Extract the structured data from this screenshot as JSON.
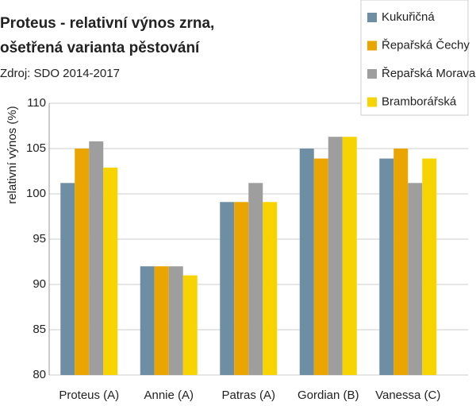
{
  "chart_data": {
    "type": "bar",
    "title": "Proteus - relativní výnos zrna,",
    "subtitle": "ošetřená varianta pěstování",
    "source": "Zdroj: SDO 2014-2017",
    "y_label": "relativní výnos (%)",
    "categories": [
      "Proteus (A)",
      "Annie (A)",
      "Patras (A)",
      "Gordian (B)",
      "Vanessa (C)"
    ],
    "series": [
      {
        "name": "Kukuřičná",
        "color": "#6e8ea3",
        "values": [
          101.2,
          92,
          99.1,
          105,
          103.9
        ]
      },
      {
        "name": "Řepařská Čechy",
        "color": "#eba500",
        "values": [
          105,
          92,
          99.1,
          103.9,
          105
        ]
      },
      {
        "name": "Řepařská Morava",
        "color": "#9e9e9e",
        "values": [
          105.8,
          92,
          101.2,
          106.3,
          101.2
        ]
      },
      {
        "name": "Bramborářská",
        "color": "#f7d400",
        "values": [
          102.9,
          91,
          99.1,
          106.3,
          103.9
        ]
      }
    ],
    "ylim": [
      80,
      110
    ],
    "yticks": [
      80,
      85,
      90,
      95,
      100,
      105,
      110
    ],
    "grid": true,
    "legend": "top-right"
  }
}
